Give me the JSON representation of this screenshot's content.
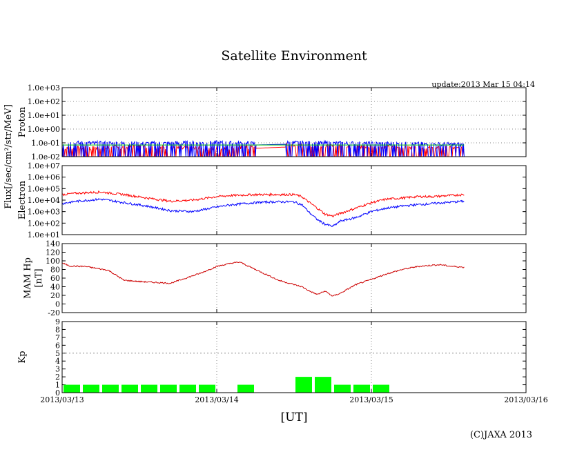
{
  "title": "Satellite Environment",
  "update": "update:2013 Mar 15 04:14",
  "copyright": "(C)JAXA 2013",
  "xlabel": "[UT]",
  "x_ticks": [
    "2013/03/13",
    "2013/03/14",
    "2013/03/15",
    "2013/03/16"
  ],
  "flux_label": "Flux[/sec/cm²/str/MeV]",
  "chart_data": [
    {
      "type": "line",
      "name": "proton",
      "ylabel": "Proton",
      "yscale": "log",
      "ylim": [
        0.01,
        1000
      ],
      "yticks": [
        "1.0e-02",
        "1.0e-01",
        "1.0e+00",
        "1.0e+01",
        "1.0e+02",
        "1.0e+03"
      ],
      "x_unit": "days since 2013/03/13 00:00 UT",
      "xlim": [
        0,
        3
      ],
      "grid": true,
      "series": [
        {
          "color": "#ff0000",
          "x": [
            0,
            0.5,
            1.0,
            1.25,
            1.45,
            2.0,
            2.6
          ],
          "y": [
            0.03,
            0.04,
            0.03,
            0.04,
            0.05,
            0.04,
            0.03
          ],
          "noisy": true
        },
        {
          "color": "#0000ff",
          "x": [
            0,
            0.5,
            1.0,
            1.25,
            1.45,
            2.0,
            2.6
          ],
          "y": [
            0.08,
            0.07,
            0.08,
            0.07,
            0.08,
            0.07,
            0.06
          ],
          "noisy": true
        },
        {
          "color": "#00cc00",
          "x": [
            0,
            0.5,
            1.0,
            1.25,
            1.45,
            2.0,
            2.6
          ],
          "y": [
            0.07,
            0.07,
            0.07,
            0.07,
            0.07,
            0.07,
            0.07
          ]
        }
      ],
      "gap": [
        1.25,
        1.45
      ]
    },
    {
      "type": "line",
      "name": "electron",
      "ylabel": "Electron",
      "yscale": "log",
      "ylim": [
        10,
        10000000
      ],
      "yticks": [
        "1.0e+01",
        "1.0e+02",
        "1.0e+03",
        "1.0e+04",
        "1.0e+05",
        "1.0e+06",
        "1.0e+07"
      ],
      "xlim": [
        0,
        3
      ],
      "grid": true,
      "series": [
        {
          "color": "#ff0000",
          "x": [
            0,
            0.1,
            0.25,
            0.4,
            0.55,
            0.7,
            0.85,
            1.0,
            1.1,
            1.25,
            1.35,
            1.5,
            1.55,
            1.6,
            1.65,
            1.7,
            1.75,
            1.8,
            1.9,
            2.0,
            2.1,
            2.2,
            2.3,
            2.4,
            2.6
          ],
          "y": [
            30000,
            40000,
            50000,
            30000,
            15000,
            8000,
            10000,
            20000,
            25000,
            30000,
            30000,
            30000,
            20000,
            6000,
            2000,
            600,
            400,
            700,
            2000,
            6000,
            12000,
            15000,
            20000,
            20000,
            30000
          ]
        },
        {
          "color": "#0000ff",
          "x": [
            0,
            0.1,
            0.25,
            0.4,
            0.55,
            0.7,
            0.85,
            1.0,
            1.1,
            1.25,
            1.35,
            1.5,
            1.55,
            1.6,
            1.65,
            1.7,
            1.75,
            1.8,
            1.9,
            2.0,
            2.1,
            2.2,
            2.3,
            2.4,
            2.6
          ],
          "y": [
            5000,
            8000,
            12000,
            6000,
            3000,
            1200,
            1000,
            2500,
            4000,
            6000,
            7000,
            7000,
            4000,
            800,
            200,
            80,
            50,
            150,
            300,
            1000,
            2000,
            3000,
            4000,
            5000,
            8000
          ]
        }
      ]
    },
    {
      "type": "line",
      "name": "mam-hp",
      "ylabel": "MAM Hp",
      "yunit": "[nT]",
      "yscale": "linear",
      "ylim": [
        -20,
        140
      ],
      "yticks": [
        "-20",
        "0",
        "20",
        "40",
        "60",
        "80",
        "100",
        "120",
        "140"
      ],
      "xlim": [
        0,
        3
      ],
      "grid": true,
      "series": [
        {
          "color": "#cc0000",
          "x": [
            0,
            0.05,
            0.15,
            0.3,
            0.4,
            0.5,
            0.6,
            0.7,
            0.8,
            0.9,
            1.0,
            1.1,
            1.15,
            1.25,
            1.4,
            1.55,
            1.6,
            1.65,
            1.7,
            1.75,
            1.8,
            1.9,
            2.0,
            2.1,
            2.2,
            2.3,
            2.4,
            2.45,
            2.5,
            2.6
          ],
          "y": [
            95,
            88,
            87,
            78,
            55,
            52,
            50,
            48,
            60,
            72,
            87,
            95,
            97,
            80,
            55,
            40,
            30,
            22,
            30,
            18,
            25,
            45,
            57,
            70,
            80,
            87,
            90,
            91,
            88,
            85
          ]
        }
      ]
    },
    {
      "type": "bar",
      "name": "kp",
      "ylabel": "Kp",
      "ylim": [
        0,
        9
      ],
      "yticks": [
        "0",
        "1",
        "2",
        "3",
        "4",
        "5",
        "6",
        "7",
        "8",
        "9"
      ],
      "xlim": [
        0,
        3
      ],
      "grid": true,
      "threshold": 5,
      "bar_color": "#00ff00",
      "bar_width_days": 0.125,
      "bars": [
        {
          "start": 0,
          "value": 1
        },
        {
          "start": 0.125,
          "value": 1
        },
        {
          "start": 0.25,
          "value": 1
        },
        {
          "start": 0.375,
          "value": 1
        },
        {
          "start": 0.5,
          "value": 1
        },
        {
          "start": 0.625,
          "value": 1
        },
        {
          "start": 0.75,
          "value": 1
        },
        {
          "start": 0.875,
          "value": 1
        },
        {
          "start": 1.125,
          "value": 1
        },
        {
          "start": 1.5,
          "value": 2
        },
        {
          "start": 1.625,
          "value": 2
        },
        {
          "start": 1.75,
          "value": 1
        },
        {
          "start": 1.875,
          "value": 1
        },
        {
          "start": 2.0,
          "value": 1
        }
      ]
    }
  ]
}
